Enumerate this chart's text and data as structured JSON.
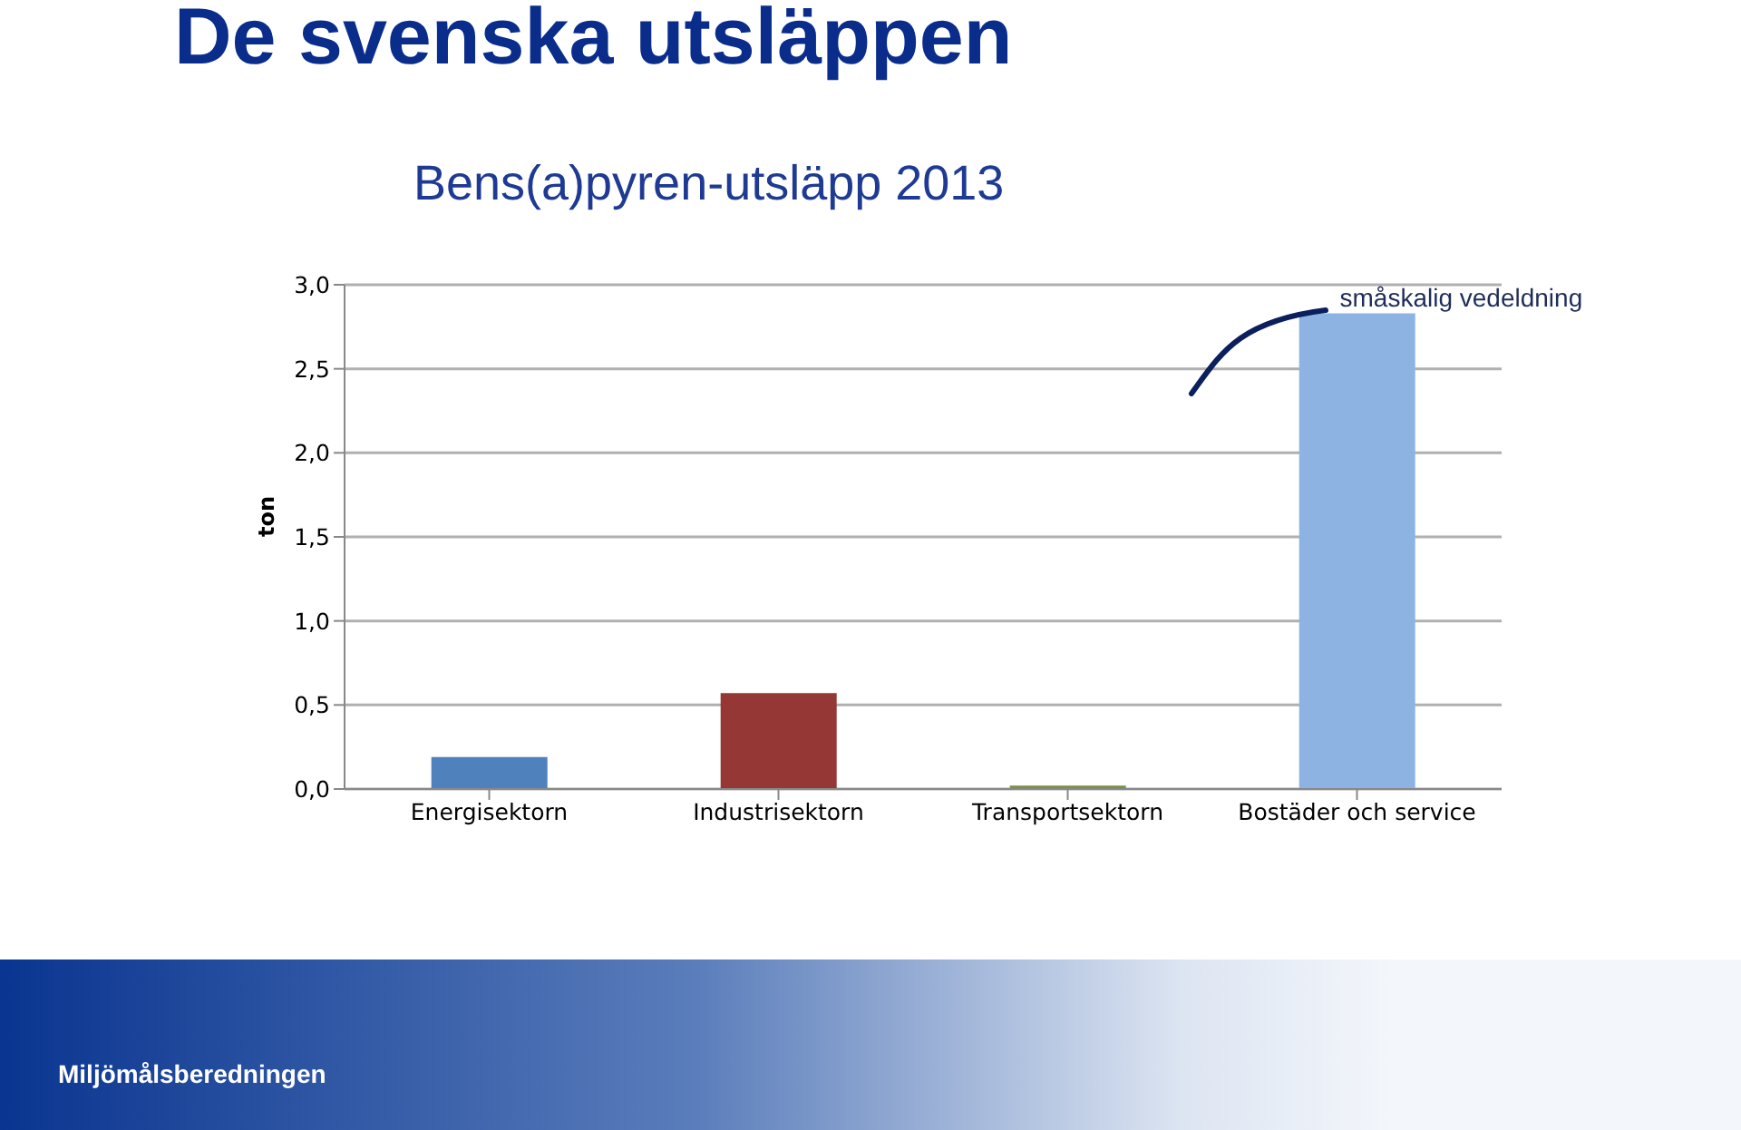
{
  "chart_data": {
    "type": "bar",
    "title": "De svenska utsläppen",
    "subtitle": "Bens(a)pyren-utsläpp 2013",
    "ylabel": "ton",
    "categories": [
      "Energisektorn",
      "Industrisektorn",
      "Transportsektorn",
      "Bostäder och service"
    ],
    "values": [
      0.19,
      0.57,
      0.02,
      2.83
    ],
    "colors": [
      "#4f81bd",
      "#953735",
      "#77933c",
      "#8db3e2"
    ],
    "ylim": [
      0,
      3
    ],
    "yticks": [
      {
        "value": 0,
        "label": "0,0"
      },
      {
        "value": 0.5,
        "label": "0,5"
      },
      {
        "value": 1,
        "label": "1,0"
      },
      {
        "value": 1.5,
        "label": "1,5"
      },
      {
        "value": 2,
        "label": "2,0"
      },
      {
        "value": 2.5,
        "label": "2,5"
      },
      {
        "value": 3,
        "label": "3,0"
      }
    ],
    "grid": "y",
    "annotations": [
      {
        "text": "småskalig vedeldning",
        "x": "Bostäder och service",
        "y": 2.83
      },
      "Miljömålsberedningen"
    ]
  }
}
